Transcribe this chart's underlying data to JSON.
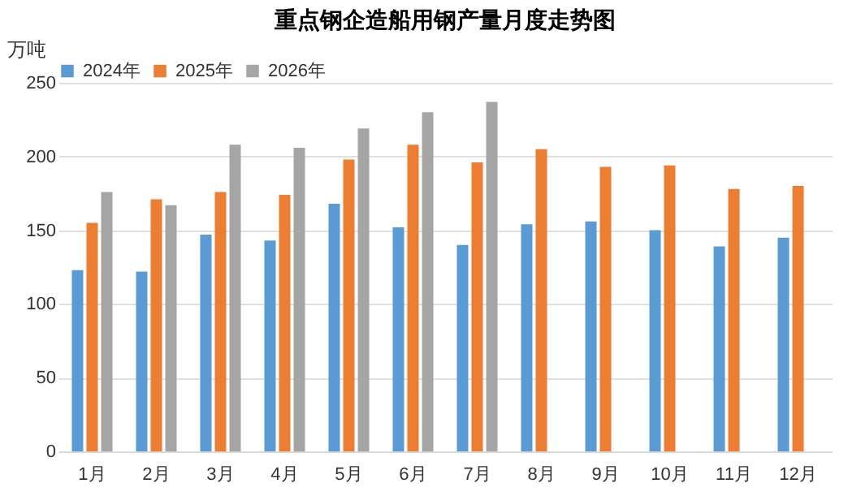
{
  "chart_data": {
    "type": "bar",
    "title": "重点钢企造船用钢产量月度走势图",
    "ylabel": "万吨",
    "categories": [
      "1月",
      "2月",
      "3月",
      "4月",
      "5月",
      "6月",
      "7月",
      "8月",
      "9月",
      "10月",
      "11月",
      "12月"
    ],
    "series": [
      {
        "name": "2024年",
        "color": "#5b9bd5",
        "values": [
          123,
          122,
          147,
          143,
          168,
          152,
          140,
          154,
          156,
          150,
          139,
          145
        ]
      },
      {
        "name": "2025年",
        "color": "#ed7d31",
        "values": [
          155,
          171,
          176,
          174,
          198,
          208,
          196,
          205,
          193,
          194,
          178,
          180
        ]
      },
      {
        "name": "2026年",
        "color": "#a5a5a5",
        "values": [
          176,
          167,
          208,
          206,
          219,
          230,
          237,
          null,
          null,
          null,
          null,
          null
        ]
      }
    ],
    "ylim": [
      0,
      250
    ],
    "yticks": [
      0,
      50,
      100,
      150,
      200,
      250
    ],
    "grid": "y",
    "legend": "top"
  }
}
